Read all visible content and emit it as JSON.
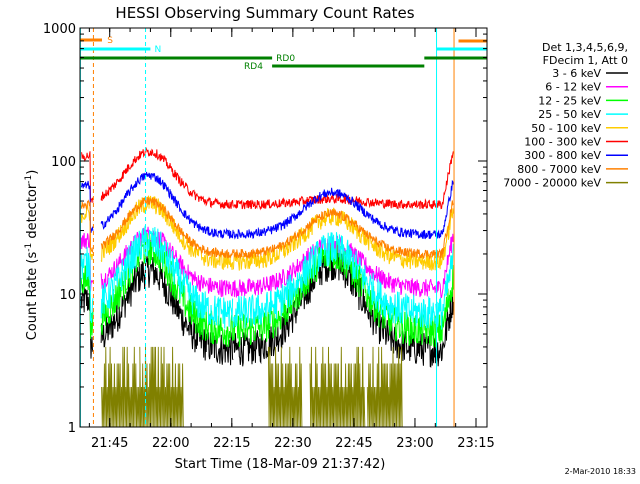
{
  "chart_data": {
    "type": "line",
    "title": "HESSI Observing Summary Count Rates",
    "xlabel": "Start Time (18-Mar-09 21:37:42)",
    "ylabel_main": "Count Rate (s",
    "ylabel_sup1": "-1",
    "ylabel_mid": " detector",
    "ylabel_sup2": "-1",
    "ylabel_end": ")",
    "yscale": "log",
    "ylim": [
      1,
      1000
    ],
    "xlim_minutes": [
      0,
      100
    ],
    "x_ticks": [
      {
        "label": "21:45",
        "m": 7.3
      },
      {
        "label": "22:00",
        "m": 22.3
      },
      {
        "label": "22:15",
        "m": 37.3
      },
      {
        "label": "22:30",
        "m": 52.3
      },
      {
        "label": "22:45",
        "m": 67.3
      },
      {
        "label": "23:00",
        "m": 82.3
      },
      {
        "label": "23:15",
        "m": 97.3
      }
    ],
    "y_ticks": [
      {
        "label": "1",
        "v": 1
      },
      {
        "label": "10",
        "v": 10
      },
      {
        "label": "100",
        "v": 100
      },
      {
        "label": "1000",
        "v": 1000
      }
    ],
    "legend_header": [
      "Det 1,3,4,5,6,9,",
      "FDecim 1, Att 0"
    ],
    "series": [
      {
        "name": "3 - 6 keV",
        "color": "#000000",
        "base": 3.8,
        "peak1": 15,
        "peak2": 17
      },
      {
        "name": "6 - 12 keV",
        "color": "#ff00ff",
        "base": 11,
        "peak1": 28,
        "peak2": 24
      },
      {
        "name": "12 - 25 keV",
        "color": "#00ff00",
        "base": 5.3,
        "peak1": 22,
        "peak2": 20
      },
      {
        "name": "25 - 50 keV",
        "color": "#00ffff",
        "base": 7.2,
        "peak1": 25,
        "peak2": 22
      },
      {
        "name": "50 - 100 keV",
        "color": "#ffcc00",
        "base": 17.5,
        "peak1": 48,
        "peak2": 38
      },
      {
        "name": "100 - 300 keV",
        "color": "#ff0000",
        "base": 47,
        "peak1": 118,
        "peak2": 52
      },
      {
        "name": "300 - 800 keV",
        "color": "#0000ff",
        "base": 28,
        "peak1": 78,
        "peak2": 58
      },
      {
        "name": "800 - 7000 keV",
        "color": "#ff8000",
        "base": 20,
        "peak1": 50,
        "peak2": 40
      },
      {
        "name": "7000 - 20000 keV",
        "color": "#808000",
        "base": 3,
        "peak1": 3,
        "peak2": 3
      }
    ],
    "annotations": [
      {
        "label": "S",
        "color": "#ff8000"
      },
      {
        "label": "N",
        "color": "#00ffff"
      },
      {
        "label": "RD0",
        "color": "#008000"
      },
      {
        "label": "RD4",
        "color": "#008000"
      }
    ],
    "grid": false,
    "legend_position": "right"
  },
  "footer_timestamp": "2-Mar-2010 18:33"
}
